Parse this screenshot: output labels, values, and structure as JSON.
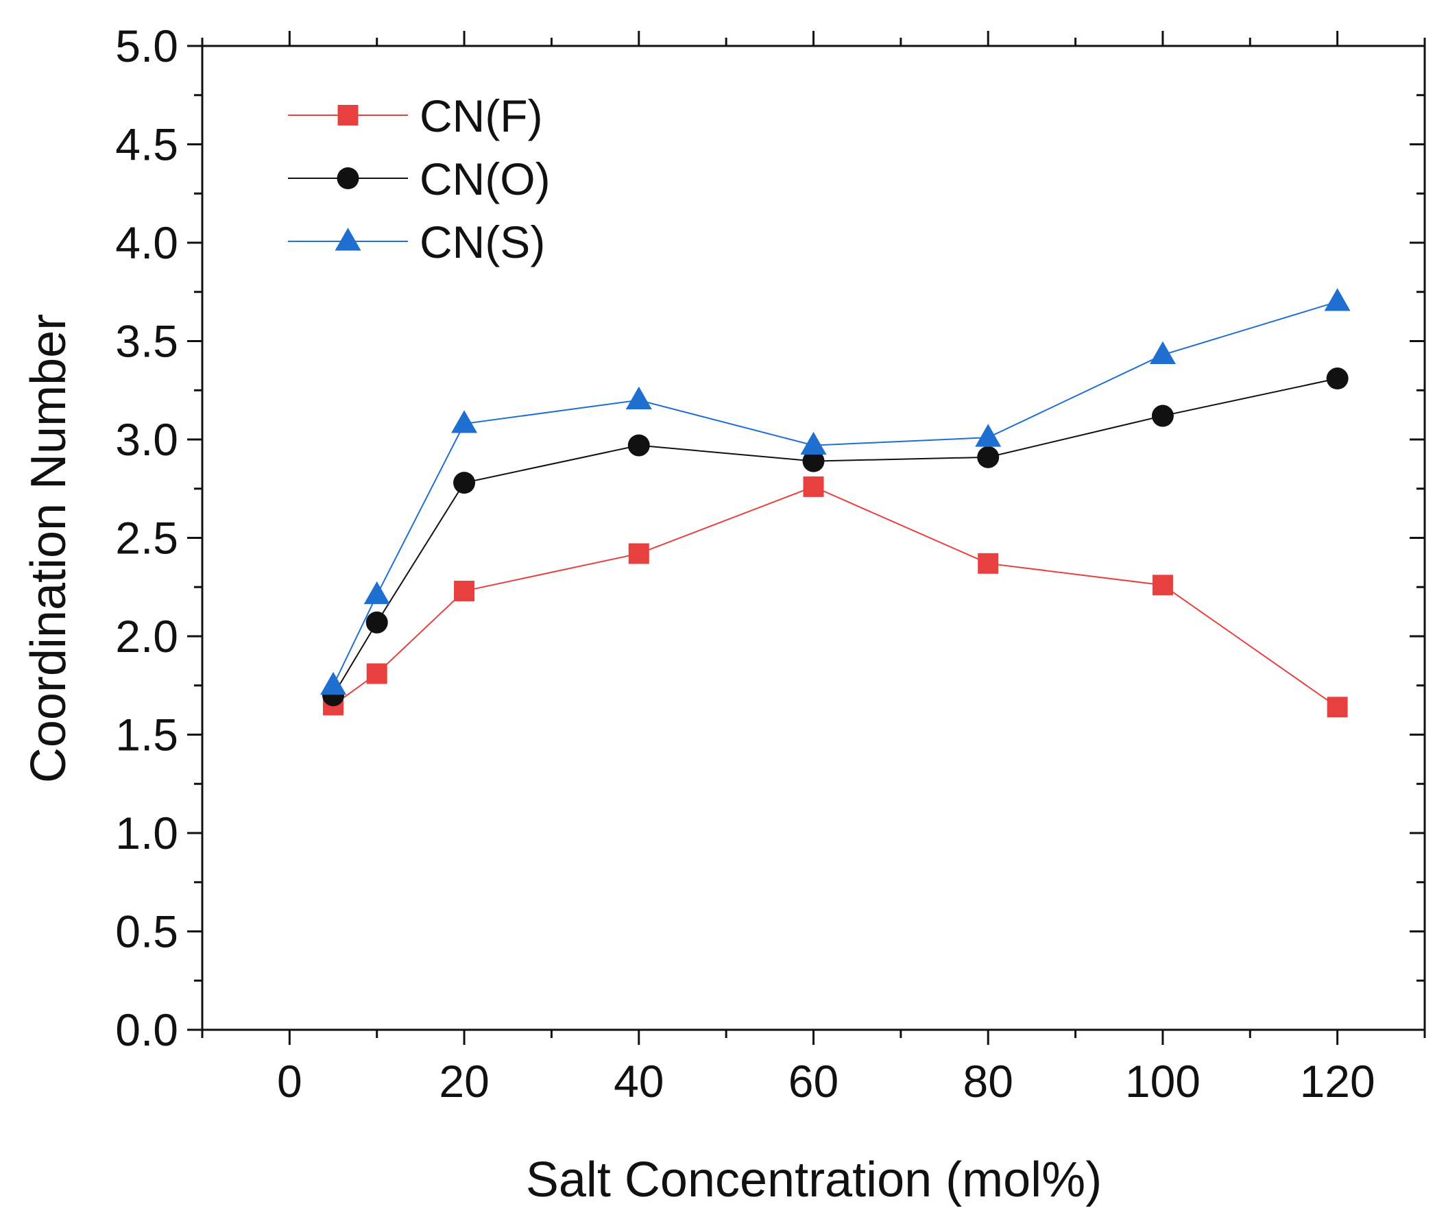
{
  "chart_data": {
    "type": "line",
    "title": "",
    "xlabel": "Salt Concentration (mol%)",
    "ylabel": "Coordination Number",
    "xlim": [
      -10,
      130
    ],
    "ylim": [
      0.0,
      5.0
    ],
    "x_ticks": [
      0,
      20,
      40,
      60,
      80,
      100,
      120
    ],
    "x_tick_labels": [
      "0",
      "20",
      "40",
      "60",
      "80",
      "100",
      "120"
    ],
    "y_ticks": [
      0.0,
      0.5,
      1.0,
      1.5,
      2.0,
      2.5,
      3.0,
      3.5,
      4.0,
      4.5,
      5.0
    ],
    "y_tick_labels": [
      "0.0",
      "0.5",
      "1.0",
      "1.5",
      "2.0",
      "2.5",
      "3.0",
      "3.5",
      "4.0",
      "4.5",
      "5.0"
    ],
    "grid": false,
    "legend_position": "top-left",
    "series": [
      {
        "name": "CN(F)",
        "color": "#e8403e",
        "marker": "square",
        "x": [
          5,
          10,
          20,
          40,
          60,
          80,
          100,
          120
        ],
        "y": [
          1.65,
          1.81,
          2.23,
          2.42,
          2.76,
          2.37,
          2.26,
          1.64
        ]
      },
      {
        "name": "CN(O)",
        "color": "#111111",
        "marker": "circle",
        "x": [
          5,
          10,
          20,
          40,
          60,
          80,
          100,
          120
        ],
        "y": [
          1.7,
          2.07,
          2.78,
          2.97,
          2.89,
          2.91,
          3.12,
          3.31
        ]
      },
      {
        "name": "CN(S)",
        "color": "#1f6fd1",
        "marker": "triangle",
        "x": [
          5,
          10,
          20,
          40,
          60,
          80,
          100,
          120
        ],
        "y": [
          1.75,
          2.21,
          3.08,
          3.2,
          2.97,
          3.01,
          3.43,
          3.7
        ]
      }
    ]
  }
}
